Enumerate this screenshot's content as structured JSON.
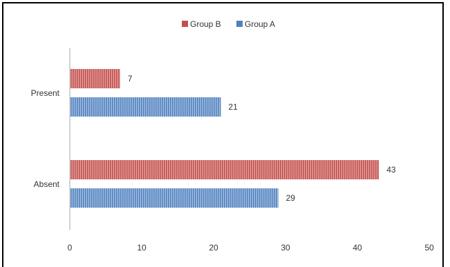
{
  "chart_data": {
    "type": "bar",
    "orientation": "horizontal",
    "categories": [
      "Present",
      "Absent"
    ],
    "series": [
      {
        "name": "Group B",
        "values": [
          7,
          43
        ],
        "color": "#c0504d"
      },
      {
        "name": "Group A",
        "values": [
          21,
          29
        ],
        "color": "#4f81bd"
      }
    ],
    "xlim": [
      0,
      50
    ],
    "x_ticks": [
      0,
      10,
      20,
      30,
      40,
      50
    ],
    "data_labels": true,
    "grid": false,
    "legend": {
      "position": "top",
      "order": [
        "Group B",
        "Group A"
      ]
    }
  }
}
